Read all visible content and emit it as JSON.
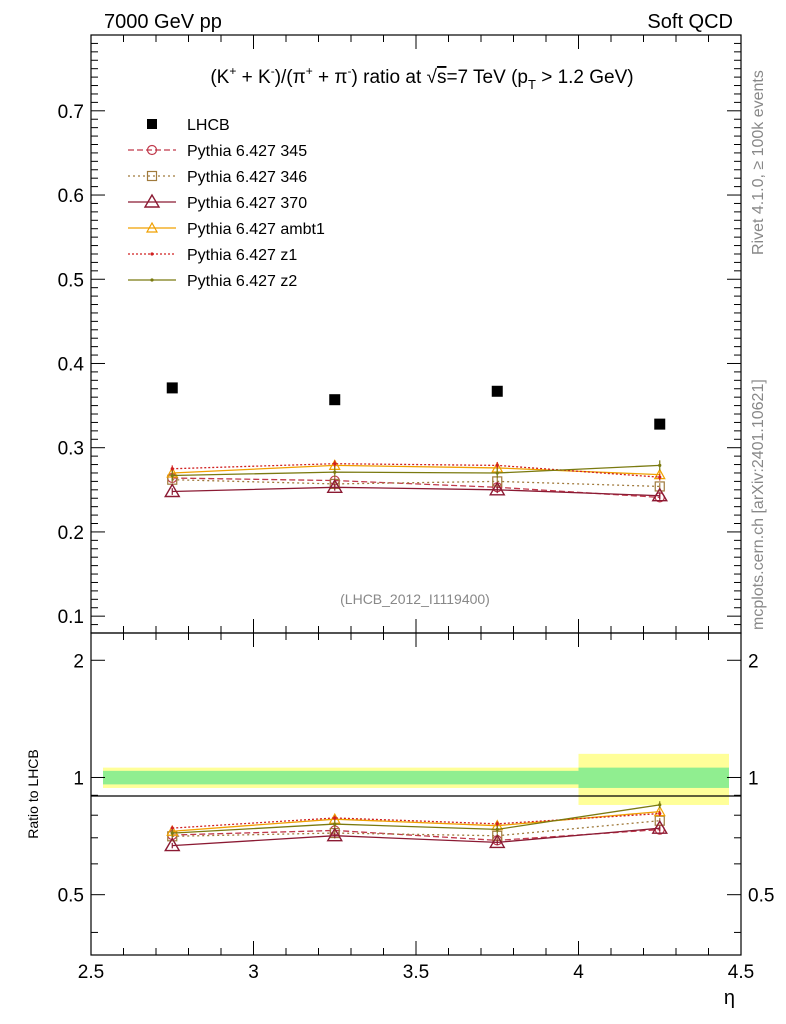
{
  "header": {
    "left": "7000 GeV pp",
    "right": "Soft QCD"
  },
  "side_labels": {
    "rivet": "Rivet 4.1.0, ≥ 100k events",
    "mcplots": "mcplots.cern.ch [arXiv:2401.10621]"
  },
  "chart_data": {
    "type": "line",
    "title": "(K⁺ + K⁻)/(π⁺ + π⁻) ratio at √s=7 TeV (pT > 1.2 GeV)",
    "title_parts": {
      "k": "(K",
      "kp": "+",
      "plus1": " + K",
      "km": "-",
      "slash": ")/(π",
      "pip": "+",
      "plus2": " + π",
      "pim": "-",
      "ratio": ") ratio at ",
      "sqrt": "√",
      "s": "s",
      "energy": "=7 TeV (p",
      "ptsub": "T",
      "cut": " > 1.2 GeV)"
    },
    "analysis_id": "(LHCB_2012_I1119400)",
    "xlabel": "η",
    "ylabel_ratio": "Ratio to LHCB",
    "xlim": [
      2.5,
      4.5
    ],
    "ylim": [
      0.08,
      0.79
    ],
    "ratio_ylim": [
      0.35,
      2.35
    ],
    "x_ticks": [
      2.5,
      3,
      3.5,
      4,
      4.5
    ],
    "x_tick_labels": [
      "2.5",
      "3",
      "3.5",
      "4",
      "4.5"
    ],
    "y_ticks": [
      0.1,
      0.2,
      0.3,
      0.4,
      0.5,
      0.6,
      0.7
    ],
    "y_tick_labels": [
      "0.1",
      "0.2",
      "0.3",
      "0.4",
      "0.5",
      "0.6",
      "0.7"
    ],
    "ratio_ticks": [
      0.5,
      1,
      2
    ],
    "ratio_tick_labels": [
      "0.5",
      "1",
      "2"
    ],
    "x": [
      2.75,
      3.25,
      3.75,
      4.25
    ],
    "bins": [
      [
        2.5,
        3.0
      ],
      [
        3.0,
        3.5
      ],
      [
        3.5,
        4.0
      ],
      [
        4.0,
        4.5
      ]
    ],
    "data": {
      "name": "LHCB",
      "values": [
        0.371,
        0.357,
        0.367,
        0.328
      ],
      "band_stat": [
        0.04,
        0.04,
        0.04,
        0.06
      ],
      "band_total": [
        0.06,
        0.06,
        0.06,
        0.15
      ]
    },
    "series": [
      {
        "name": "Pythia 6.427 345",
        "color": "#c0394b",
        "dash": "6,3",
        "marker": "circle",
        "values": [
          0.264,
          0.261,
          0.253,
          0.241
        ],
        "err": 0.004
      },
      {
        "name": "Pythia 6.427 346",
        "color": "#a07a3c",
        "dash": "2,3",
        "marker": "square",
        "values": [
          0.262,
          0.257,
          0.26,
          0.254
        ],
        "err": 0.004
      },
      {
        "name": "Pythia 6.427 370",
        "color": "#8b1a33",
        "dash": "",
        "marker": "triangle",
        "values": [
          0.248,
          0.253,
          0.25,
          0.243
        ],
        "err": 0.004
      },
      {
        "name": "Pythia 6.427 ambt1",
        "color": "#f0a000",
        "dash": "",
        "marker": "triangle-small",
        "values": [
          0.27,
          0.279,
          0.276,
          0.268
        ],
        "err": 0.004
      },
      {
        "name": "Pythia 6.427 z1",
        "color": "#d02020",
        "dash": "2,2",
        "marker": "dot",
        "values": [
          0.275,
          0.281,
          0.279,
          0.265
        ],
        "err": 0.004
      },
      {
        "name": "Pythia 6.427 z2",
        "color": "#7a7a10",
        "dash": "",
        "marker": "dot",
        "values": [
          0.267,
          0.271,
          0.27,
          0.279
        ],
        "err": 0.006
      }
    ]
  }
}
